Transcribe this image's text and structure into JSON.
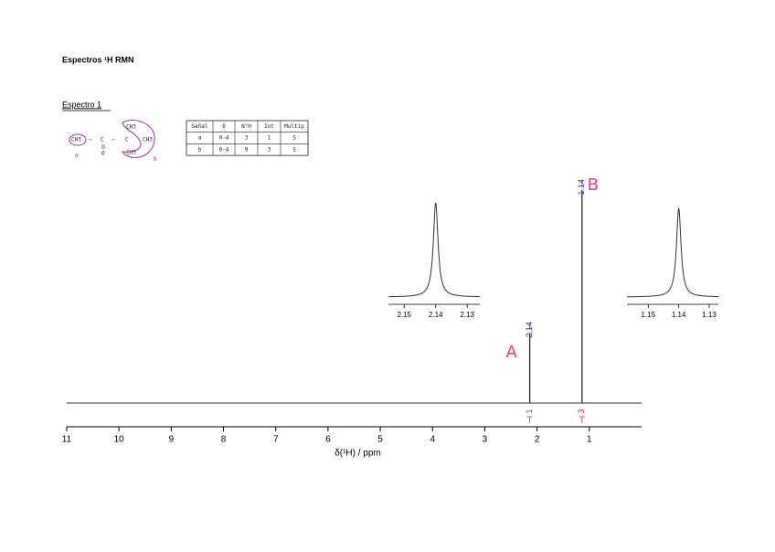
{
  "header": {
    "title": "Espectros ¹H RMN"
  },
  "section": {
    "title": "Espectro 1"
  },
  "molecule": {
    "groups": [
      "CH3",
      "C",
      "C",
      "CH3",
      "CH3",
      "CH3",
      "O"
    ],
    "labels": [
      "a",
      "b"
    ]
  },
  "table": {
    "columns": [
      "Señal",
      "δ",
      "N°H",
      "Int",
      "Multip"
    ],
    "rows": [
      [
        "a",
        "0-4",
        "3",
        "1",
        "S"
      ],
      [
        "b",
        "0-4",
        "9",
        "3",
        "S"
      ]
    ]
  },
  "chart_data": {
    "type": "nmr",
    "x_label": "δ(¹H) / ppm",
    "xlim": [
      11,
      0
    ],
    "xticks": [
      11,
      10,
      9,
      8,
      7,
      6,
      5,
      4,
      3,
      2,
      1
    ],
    "ylim": [
      0,
      100
    ],
    "x": [
      2.14,
      1.14
    ],
    "values": [
      33,
      100
    ],
    "integrals": [
      1,
      3
    ],
    "annotations": [
      "A",
      "B"
    ],
    "peak_color": "#333333",
    "shift_label_color": "#3a3aa0",
    "integral_color": "#e03030",
    "annotation_color": "#e8389a",
    "insets": [
      {
        "xlim": [
          2.155,
          2.126
        ],
        "xticks": [
          2.15,
          2.14,
          2.13
        ]
      },
      {
        "xlim": [
          1.157,
          1.127
        ],
        "xticks": [
          1.15,
          1.14,
          1.13
        ]
      }
    ]
  }
}
